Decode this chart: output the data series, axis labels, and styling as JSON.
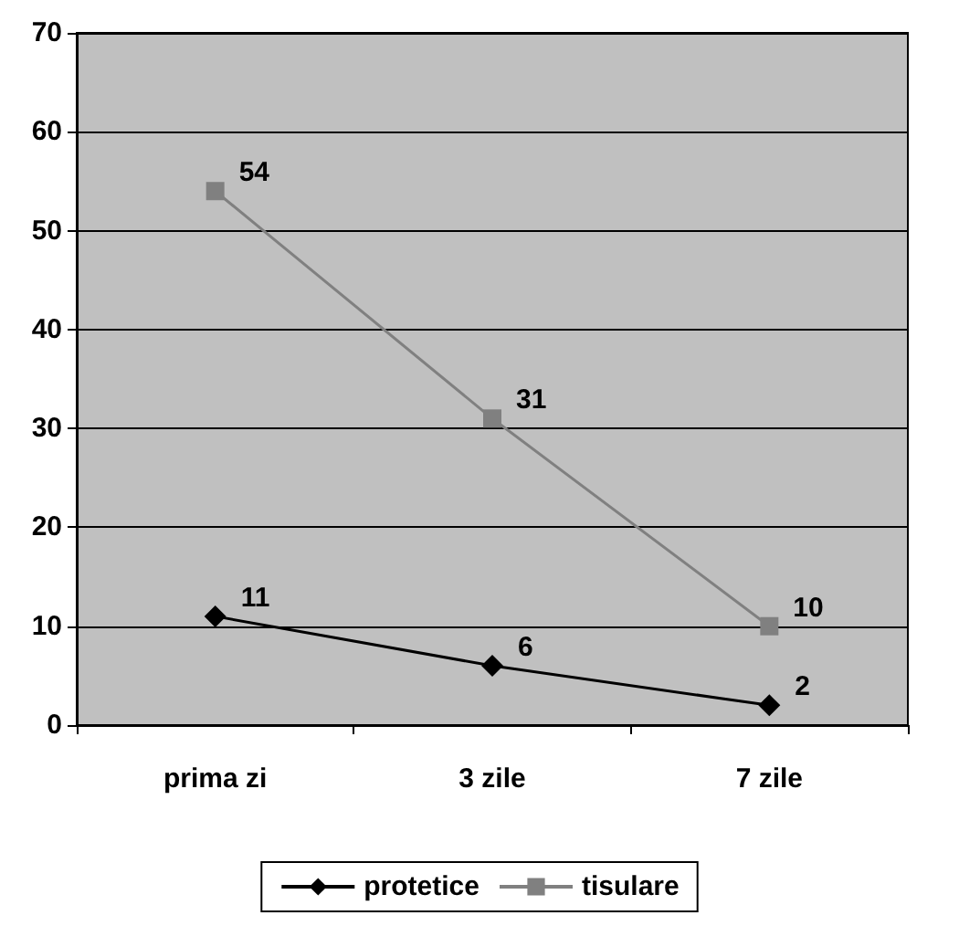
{
  "chart_data": {
    "type": "line",
    "categories": [
      "prima zi",
      "3 zile",
      "7 zile"
    ],
    "series": [
      {
        "name": "protetice",
        "color": "#000000",
        "marker": "diamond",
        "values": [
          11,
          6,
          2
        ],
        "value_labels": [
          "11",
          "6",
          "2"
        ]
      },
      {
        "name": "tisulare",
        "color": "#808080",
        "marker": "square",
        "values": [
          54,
          31,
          10
        ],
        "value_labels": [
          "54",
          "31",
          "10"
        ]
      }
    ],
    "ylim": [
      0,
      70
    ],
    "yticks": [
      0,
      10,
      20,
      30,
      40,
      50,
      60,
      70
    ],
    "grid": "y",
    "legend": "bottom",
    "line_style": "solid"
  }
}
